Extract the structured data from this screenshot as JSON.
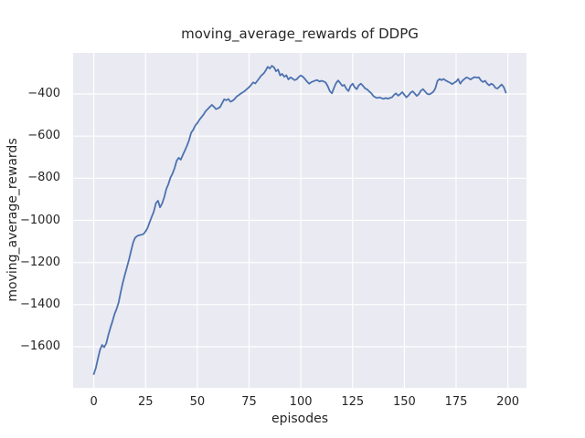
{
  "chart_data": {
    "type": "line",
    "title": "moving_average_rewards of DDPG",
    "xlabel": "episodes",
    "ylabel": "moving_average_rewards",
    "grid": true,
    "legend": null,
    "xlim": [
      -10,
      209
    ],
    "ylim": [
      -1795,
      -205
    ],
    "xticks": {
      "values": [
        0,
        25,
        50,
        75,
        100,
        125,
        150,
        175,
        200
      ],
      "labels": [
        "0",
        "25",
        "50",
        "75",
        "100",
        "125",
        "150",
        "175",
        "200"
      ]
    },
    "yticks": {
      "values": [
        -400,
        -600,
        -800,
        -1000,
        -1200,
        -1400,
        -1600
      ],
      "labels": [
        "−400",
        "−600",
        "−800",
        "−1000",
        "−1200",
        "−1400",
        "−1600"
      ]
    },
    "x_start": 0,
    "x_step": 1,
    "series": [
      {
        "name": "moving_average_rewards",
        "color": "#4C72B0",
        "values": [
          -1730,
          -1700,
          -1655,
          -1615,
          -1592,
          -1602,
          -1585,
          -1545,
          -1510,
          -1480,
          -1445,
          -1420,
          -1390,
          -1340,
          -1295,
          -1258,
          -1222,
          -1185,
          -1145,
          -1105,
          -1082,
          -1074,
          -1070,
          -1068,
          -1065,
          -1052,
          -1035,
          -1008,
          -982,
          -958,
          -918,
          -907,
          -938,
          -920,
          -890,
          -852,
          -828,
          -798,
          -778,
          -752,
          -718,
          -703,
          -712,
          -690,
          -668,
          -645,
          -620,
          -584,
          -570,
          -550,
          -538,
          -522,
          -510,
          -498,
          -482,
          -472,
          -461,
          -452,
          -460,
          -472,
          -468,
          -462,
          -443,
          -425,
          -430,
          -424,
          -437,
          -432,
          -424,
          -412,
          -405,
          -398,
          -392,
          -385,
          -376,
          -368,
          -356,
          -345,
          -350,
          -337,
          -324,
          -311,
          -303,
          -289,
          -271,
          -279,
          -266,
          -273,
          -292,
          -284,
          -312,
          -304,
          -318,
          -311,
          -331,
          -321,
          -327,
          -334,
          -330,
          -319,
          -312,
          -318,
          -329,
          -341,
          -351,
          -344,
          -340,
          -336,
          -334,
          -341,
          -337,
          -340,
          -346,
          -363,
          -386,
          -397,
          -371,
          -349,
          -336,
          -348,
          -361,
          -357,
          -376,
          -386,
          -362,
          -351,
          -368,
          -377,
          -359,
          -351,
          -361,
          -373,
          -378,
          -388,
          -396,
          -409,
          -416,
          -419,
          -416,
          -420,
          -423,
          -419,
          -422,
          -419,
          -416,
          -404,
          -397,
          -408,
          -401,
          -391,
          -404,
          -416,
          -407,
          -394,
          -387,
          -398,
          -409,
          -401,
          -384,
          -377,
          -388,
          -399,
          -402,
          -397,
          -389,
          -373,
          -338,
          -329,
          -334,
          -329,
          -336,
          -341,
          -346,
          -353,
          -347,
          -341,
          -329,
          -351,
          -337,
          -329,
          -321,
          -325,
          -331,
          -324,
          -320,
          -322,
          -321,
          -336,
          -343,
          -337,
          -351,
          -359,
          -351,
          -357,
          -371,
          -374,
          -364,
          -355,
          -367,
          -393
        ]
      }
    ],
    "style": {
      "plot_background": "#EAEAF2",
      "grid_color": "#FFFFFF",
      "text_color": "#262626",
      "figure_background": "#FFFFFF",
      "line_width": 1.8
    }
  }
}
